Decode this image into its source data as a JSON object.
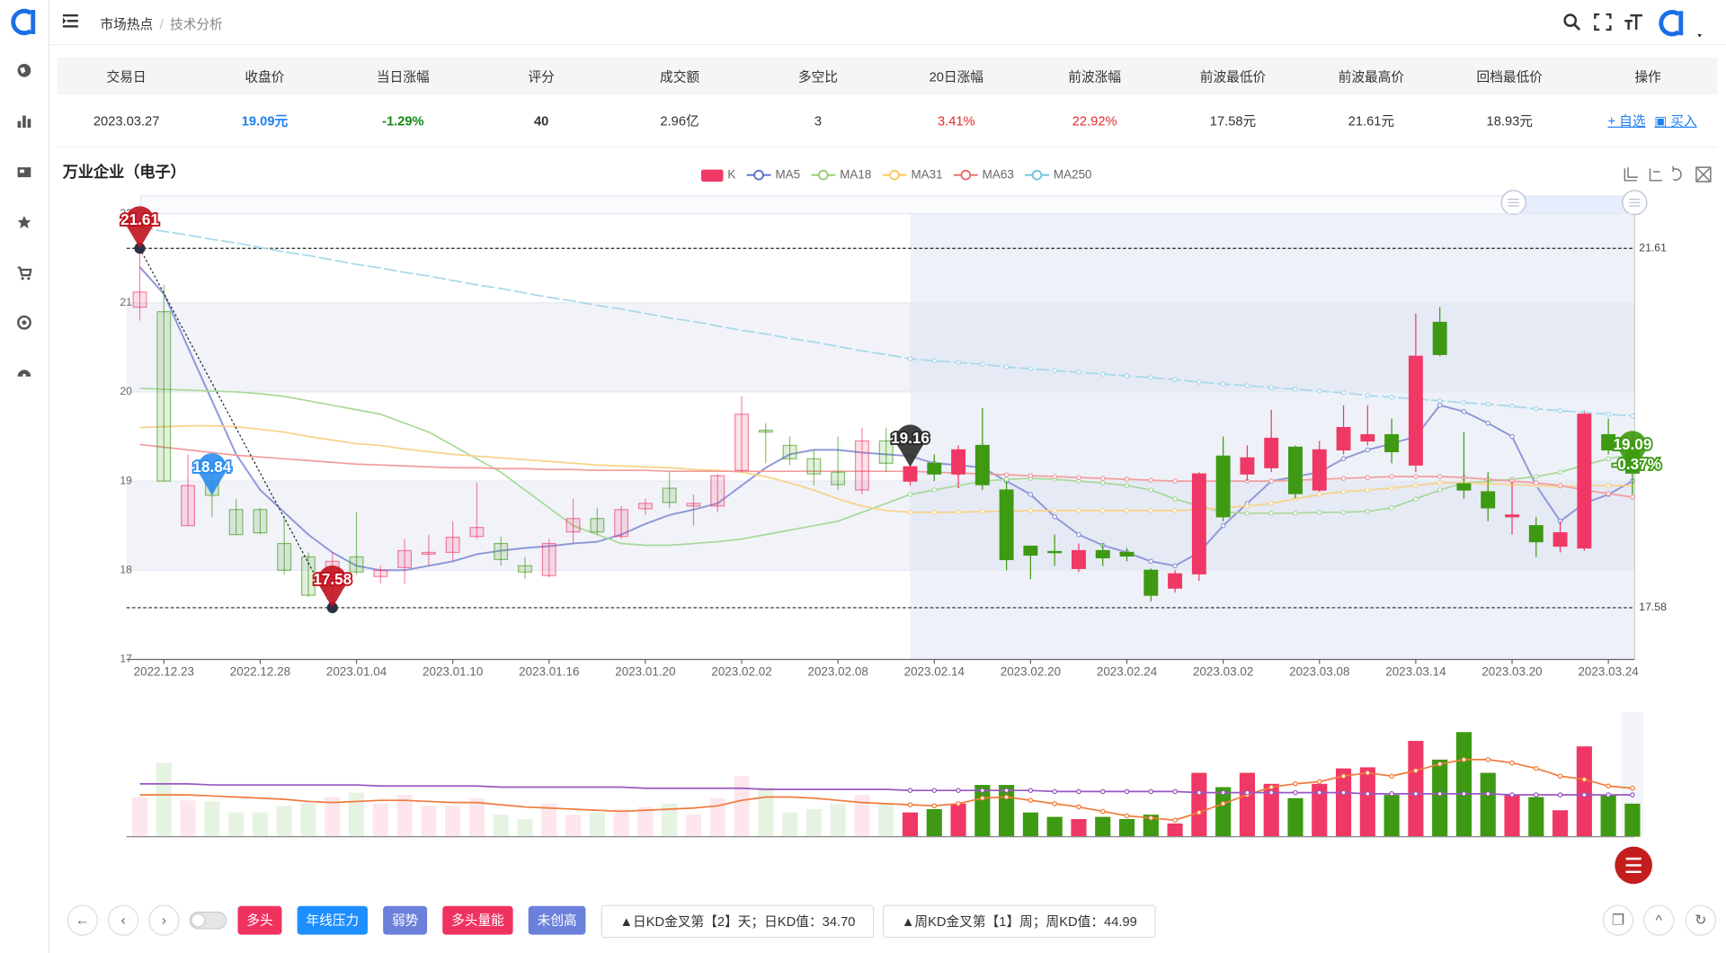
{
  "header": {
    "breadcrumb": [
      "市场热点",
      "技术分析"
    ]
  },
  "table": {
    "columns": [
      "交易日",
      "收盘价",
      "当日涨幅",
      "评分",
      "成交额",
      "多空比",
      "20日涨幅",
      "前波涨幅",
      "前波最低价",
      "前波最高价",
      "回档最低价",
      "操作"
    ],
    "rows": [
      [
        "2023.03.27",
        "19.09元",
        "-1.29%",
        "40",
        "2.96亿",
        "3",
        "3.41%",
        "22.92%",
        "17.58元",
        "21.61元",
        "18.93元"
      ]
    ],
    "actions": [
      "自选",
      "买入"
    ]
  },
  "chart_data": {
    "type": "candlestick",
    "title": "万业企业（电子）",
    "categories": [
      null,
      "2022.12.23",
      null,
      null,
      null,
      "2022.12.28",
      null,
      null,
      null,
      "2023.01.04",
      null,
      null,
      null,
      "2023.01.10",
      null,
      null,
      null,
      "2023.01.16",
      null,
      null,
      null,
      "2023.01.20",
      null,
      null,
      null,
      "2023.02.02",
      null,
      null,
      null,
      "2023.02.08",
      null,
      null,
      null,
      "2023.02.14",
      null,
      null,
      null,
      "2023.02.20",
      null,
      null,
      null,
      "2023.02.24",
      null,
      null,
      null,
      "2023.03.02",
      null,
      null,
      null,
      "2023.03.08",
      null,
      null,
      null,
      "2023.03.14",
      null,
      null,
      null,
      "2023.03.20",
      null,
      null,
      null,
      "2023.03.24",
      null
    ],
    "ylim": [
      17,
      22
    ],
    "yticks": [
      17,
      18,
      19,
      20,
      21,
      22
    ],
    "candles": {
      "name": "K",
      "up_color": "#f03866",
      "down_color": "#3d9a12",
      "open": [
        20.95,
        20.9,
        18.5,
        19.0,
        18.68,
        18.68,
        18.3,
        18.15,
        17.85,
        18.15,
        17.93,
        18.03,
        18.18,
        18.2,
        18.38,
        18.3,
        18.05,
        17.94,
        18.43,
        18.58,
        18.38,
        18.69,
        18.92,
        18.72,
        18.72,
        19.12,
        19.57,
        19.4,
        19.25,
        19.1,
        18.9,
        19.45,
        19.0,
        19.2,
        19.08,
        19.4,
        18.9,
        18.27,
        18.21,
        18.02,
        18.22,
        18.2,
        18.0,
        17.8,
        17.96,
        19.28,
        19.08,
        19.15,
        19.38,
        18.9,
        19.35,
        19.45,
        19.52,
        19.18,
        20.78,
        18.97,
        18.88,
        18.6,
        18.5,
        18.27,
        18.25,
        19.52,
        19.45
      ],
      "high": [
        21.61,
        21.2,
        19.3,
        19.2,
        18.8,
        18.7,
        18.6,
        18.2,
        18.2,
        18.65,
        18.05,
        18.35,
        18.4,
        18.55,
        18.98,
        18.38,
        18.15,
        18.35,
        18.8,
        18.7,
        18.72,
        18.8,
        19.1,
        18.85,
        19.08,
        19.95,
        19.65,
        19.5,
        19.35,
        19.5,
        19.6,
        19.6,
        19.2,
        19.3,
        19.4,
        19.82,
        19.0,
        18.27,
        18.4,
        18.3,
        18.3,
        18.25,
        18.02,
        18.0,
        19.1,
        19.5,
        19.4,
        19.8,
        19.4,
        19.45,
        19.85,
        19.85,
        19.7,
        20.88,
        20.95,
        19.55,
        19.1,
        19.0,
        18.6,
        18.55,
        19.78,
        19.7,
        19.55
      ],
      "low": [
        20.8,
        19.0,
        18.5,
        18.6,
        18.4,
        18.4,
        17.95,
        17.7,
        17.58,
        17.95,
        17.85,
        17.85,
        18.05,
        18.1,
        18.35,
        18.05,
        17.9,
        17.92,
        18.3,
        18.4,
        18.35,
        18.62,
        18.7,
        18.5,
        18.65,
        19.1,
        19.2,
        19.18,
        18.95,
        18.9,
        18.85,
        19.1,
        18.95,
        19.0,
        18.92,
        18.9,
        18.0,
        17.9,
        18.05,
        17.98,
        18.05,
        18.1,
        17.65,
        17.75,
        17.88,
        18.55,
        19.0,
        19.1,
        18.8,
        18.88,
        19.3,
        19.4,
        19.2,
        19.1,
        20.4,
        18.8,
        18.55,
        18.4,
        18.15,
        18.2,
        18.22,
        19.3,
        18.85
      ],
      "close": [
        21.12,
        19.0,
        18.95,
        18.84,
        18.4,
        18.42,
        18.0,
        17.72,
        18.1,
        17.98,
        18.0,
        18.22,
        18.2,
        18.37,
        18.48,
        18.12,
        17.98,
        18.3,
        18.58,
        18.43,
        18.68,
        18.75,
        18.76,
        18.75,
        19.06,
        19.75,
        19.55,
        19.25,
        19.08,
        18.96,
        19.45,
        19.2,
        19.16,
        19.08,
        19.35,
        18.96,
        18.12,
        18.17,
        18.2,
        18.22,
        18.14,
        18.16,
        17.72,
        17.96,
        19.08,
        18.6,
        19.26,
        19.48,
        18.86,
        19.35,
        19.6,
        19.52,
        19.33,
        20.4,
        20.42,
        18.9,
        18.7,
        18.62,
        18.32,
        18.42,
        19.75,
        19.35,
        19.09
      ]
    },
    "series": [
      {
        "name": "MA5",
        "color": "#8e98d8",
        "legend_color": "#5470c6",
        "values": [
          21.4,
          21.1,
          20.5,
          19.9,
          19.3,
          18.9,
          18.65,
          18.4,
          18.2,
          18.05,
          18.0,
          18.0,
          18.05,
          18.1,
          18.18,
          18.22,
          18.25,
          18.27,
          18.3,
          18.32,
          18.4,
          18.52,
          18.62,
          18.68,
          18.75,
          18.95,
          19.15,
          19.3,
          19.35,
          19.35,
          19.32,
          19.3,
          19.28,
          19.2,
          19.18,
          19.15,
          19.0,
          18.85,
          18.6,
          18.4,
          18.28,
          18.2,
          18.1,
          18.05,
          18.2,
          18.5,
          18.75,
          19.0,
          19.05,
          19.1,
          19.25,
          19.35,
          19.42,
          19.5,
          19.85,
          19.78,
          19.65,
          19.5,
          18.95,
          18.55,
          18.75,
          18.85,
          19.0
        ]
      },
      {
        "name": "MA18",
        "color": "#a9d899",
        "legend_color": "#91cc75",
        "values": [
          20.04,
          20.03,
          20.02,
          20.01,
          20.0,
          19.98,
          19.95,
          19.9,
          19.85,
          19.8,
          19.75,
          19.65,
          19.55,
          19.4,
          19.25,
          19.1,
          18.9,
          18.7,
          18.5,
          18.4,
          18.3,
          18.28,
          18.28,
          18.3,
          18.32,
          18.35,
          18.4,
          18.45,
          18.5,
          18.55,
          18.65,
          18.75,
          18.85,
          18.9,
          18.95,
          19.0,
          19.02,
          19.03,
          19.02,
          19.0,
          18.98,
          18.95,
          18.9,
          18.8,
          18.72,
          18.65,
          18.64,
          18.64,
          18.64,
          18.65,
          18.65,
          18.66,
          18.7,
          18.8,
          18.9,
          18.98,
          19.0,
          19.02,
          19.05,
          19.1,
          19.18,
          19.25,
          19.3
        ]
      },
      {
        "name": "MA31",
        "color": "#f7d287",
        "legend_color": "#fac858",
        "values": [
          19.6,
          19.61,
          19.62,
          19.62,
          19.61,
          19.58,
          19.55,
          19.5,
          19.46,
          19.42,
          19.4,
          19.36,
          19.33,
          19.3,
          19.28,
          19.26,
          19.24,
          19.22,
          19.2,
          19.18,
          19.17,
          19.16,
          19.15,
          19.13,
          19.12,
          19.1,
          19.05,
          18.98,
          18.9,
          18.8,
          18.72,
          18.67,
          18.65,
          18.65,
          18.65,
          18.66,
          18.66,
          18.67,
          18.67,
          18.67,
          18.67,
          18.67,
          18.67,
          18.67,
          18.68,
          18.7,
          18.72,
          18.75,
          18.8,
          18.85,
          18.88,
          18.9,
          18.92,
          18.95,
          18.98,
          18.98,
          18.97,
          18.96,
          18.95,
          18.94,
          18.95,
          18.95,
          18.95
        ]
      },
      {
        "name": "MA63",
        "color": "#f29c9c",
        "legend_color": "#ee6666",
        "values": [
          19.41,
          19.38,
          19.35,
          19.32,
          19.29,
          19.27,
          19.25,
          19.23,
          19.21,
          19.19,
          19.18,
          19.17,
          19.16,
          19.15,
          19.15,
          19.14,
          19.14,
          19.13,
          19.13,
          19.12,
          19.12,
          19.12,
          19.11,
          19.11,
          19.11,
          19.11,
          19.11,
          19.11,
          19.11,
          19.11,
          19.11,
          19.11,
          19.11,
          19.1,
          19.09,
          19.08,
          19.07,
          19.06,
          19.05,
          19.04,
          19.03,
          19.02,
          19.01,
          19.0,
          19.0,
          19.0,
          19.0,
          19.0,
          19.01,
          19.02,
          19.03,
          19.04,
          19.05,
          19.05,
          19.05,
          19.04,
          19.02,
          19.0,
          18.98,
          18.95,
          18.9,
          18.86,
          18.82
        ]
      },
      {
        "name": "MA250",
        "color": "#a6d8ea",
        "legend_color": "#73c0de",
        "values": [
          21.85,
          21.8,
          21.76,
          21.71,
          21.67,
          21.62,
          21.57,
          21.53,
          21.48,
          21.43,
          21.39,
          21.34,
          21.3,
          21.25,
          21.2,
          21.16,
          21.11,
          21.06,
          21.02,
          20.97,
          20.93,
          20.88,
          20.83,
          20.79,
          20.74,
          20.69,
          20.65,
          20.6,
          20.56,
          20.51,
          20.46,
          20.42,
          20.37,
          20.35,
          20.33,
          20.31,
          20.28,
          20.26,
          20.24,
          20.22,
          20.2,
          20.18,
          20.16,
          20.14,
          20.11,
          20.09,
          20.07,
          20.05,
          20.03,
          20.01,
          19.99,
          19.96,
          19.94,
          19.92,
          19.9,
          19.88,
          19.86,
          19.84,
          19.81,
          19.79,
          19.77,
          19.75,
          19.73
        ]
      }
    ],
    "ref_lines": [
      21.61,
      17.58
    ],
    "pins": [
      {
        "value": 21.61,
        "index": 0,
        "color": "#c0121e"
      },
      {
        "value": 18.84,
        "index": 3,
        "color": "#2a8df0"
      },
      {
        "value": 17.58,
        "index": 8,
        "color": "#c0121e"
      },
      {
        "value": 19.16,
        "index": 32,
        "color": "#2b2b2b"
      },
      {
        "value": 19.09,
        "index": 62,
        "color": "#3d9a12",
        "change": -0.37,
        "change_label": "-0.37%"
      }
    ],
    "volume": {
      "values": [
        36,
        67,
        33,
        32,
        22,
        22,
        28,
        30,
        36,
        40,
        30,
        38,
        28,
        28,
        35,
        20,
        16,
        30,
        20,
        22,
        25,
        27,
        30,
        20,
        35,
        55,
        45,
        22,
        25,
        30,
        38,
        30,
        22,
        25,
        30,
        47,
        47,
        22,
        18,
        16,
        18,
        16,
        20,
        12,
        58,
        45,
        58,
        48,
        35,
        48,
        62,
        63,
        38,
        87,
        70,
        95,
        58,
        38,
        36,
        24,
        82,
        38,
        30
      ],
      "series": [
        {
          "color": "#f07a3a",
          "values": [
            38,
            38,
            38,
            37,
            36,
            35,
            34,
            32,
            31,
            32,
            33,
            33,
            32,
            31,
            31,
            29,
            27,
            26,
            25,
            24,
            23,
            24,
            25,
            26,
            28,
            33,
            36,
            36,
            35,
            33,
            31,
            30,
            29,
            28,
            30,
            35,
            36,
            33,
            30,
            27,
            23,
            19,
            17,
            15,
            22,
            30,
            38,
            45,
            48,
            50,
            55,
            58,
            55,
            60,
            66,
            70,
            70,
            67,
            62,
            55,
            52,
            46,
            44
          ]
        },
        {
          "color": "#9a56c2",
          "values": [
            48,
            48,
            48,
            47,
            47,
            47,
            47,
            47,
            47,
            47,
            46,
            46,
            46,
            46,
            46,
            45,
            45,
            45,
            45,
            45,
            45,
            44,
            44,
            44,
            44,
            44,
            43,
            43,
            43,
            43,
            43,
            43,
            42,
            42,
            42,
            42,
            42,
            42,
            41,
            41,
            41,
            41,
            41,
            41,
            40,
            40,
            40,
            40,
            40,
            40,
            40,
            39,
            39,
            39,
            39,
            39,
            39,
            38,
            38,
            38,
            38,
            38,
            38
          ]
        }
      ]
    }
  },
  "signals": {
    "tags": [
      {
        "text": "多头",
        "color": "#f0325f"
      },
      {
        "text": "年线压力",
        "color": "#1e8fff"
      },
      {
        "text": "弱势",
        "color": "#6a80da"
      },
      {
        "text": "多头量能",
        "color": "#f0325f"
      },
      {
        "text": "未创高",
        "color": "#6a80da"
      }
    ],
    "notes": [
      "▲日KD金叉第【2】天；日KD值：34.70",
      "▲周KD金叉第【1】周；周KD值：44.99"
    ]
  }
}
